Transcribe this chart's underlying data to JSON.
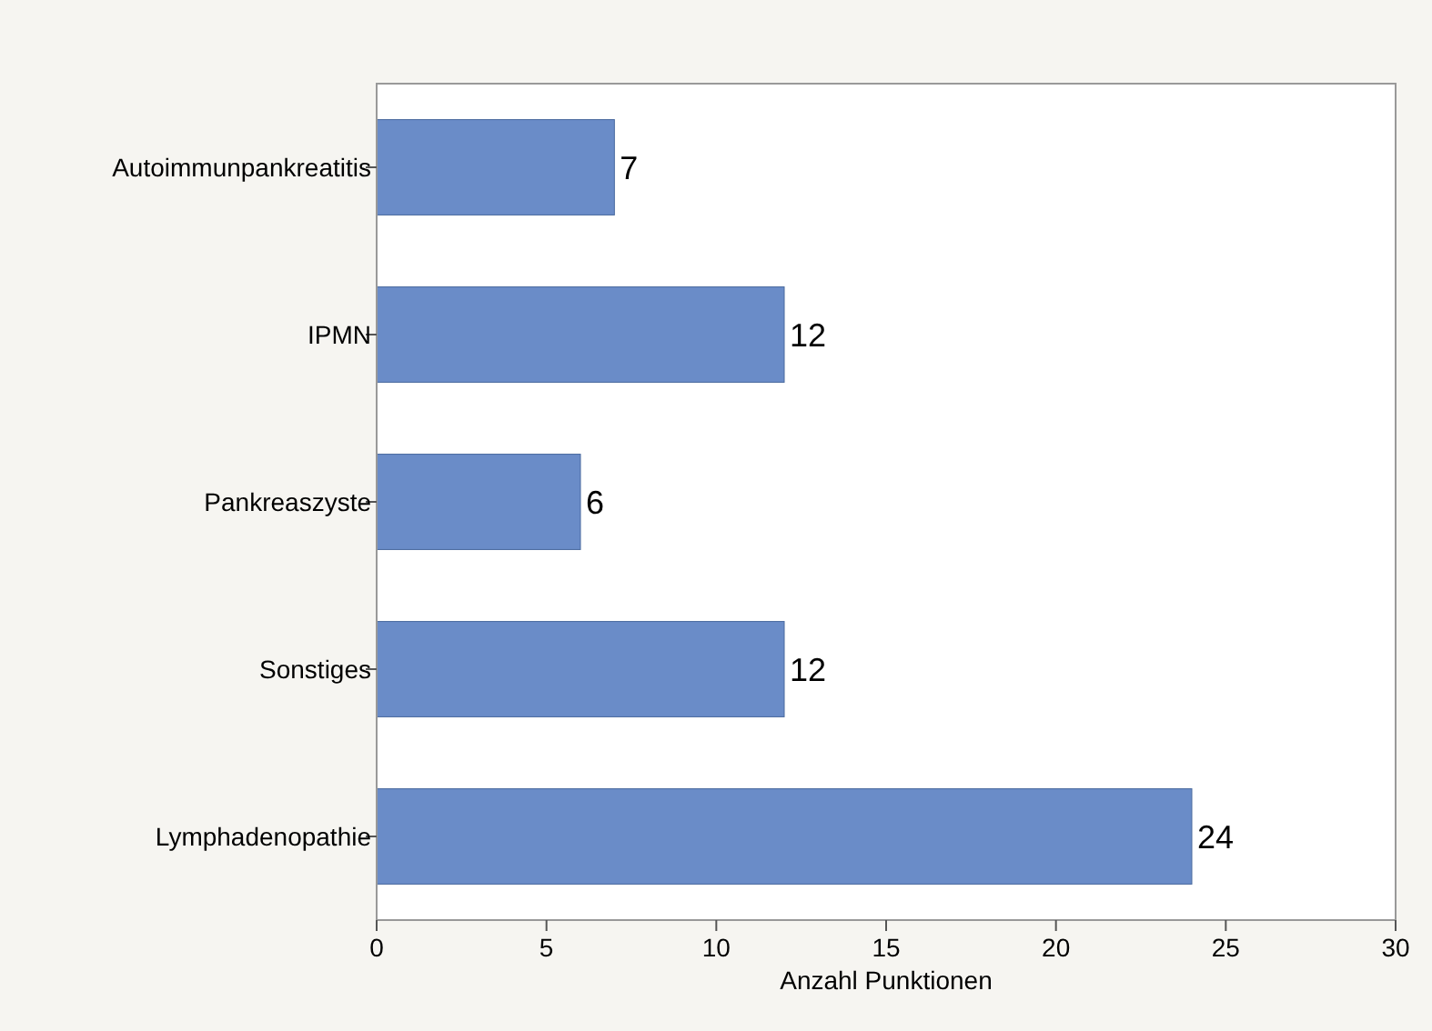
{
  "chart_data": {
    "type": "bar",
    "orientation": "horizontal",
    "xlabel": "Anzahl Punktionen",
    "categories": [
      "Autoimmunpankreatitis",
      "IPMN",
      "Pankreaszyste",
      "Sonstiges",
      "Lymphadenopathie"
    ],
    "values": [
      7,
      12,
      6,
      12,
      24
    ],
    "color": "#6a8cc8",
    "xlim": [
      0,
      30
    ],
    "xticks": [
      0,
      5,
      10,
      15,
      20,
      25,
      30
    ],
    "grid": false,
    "data_labels": true
  }
}
